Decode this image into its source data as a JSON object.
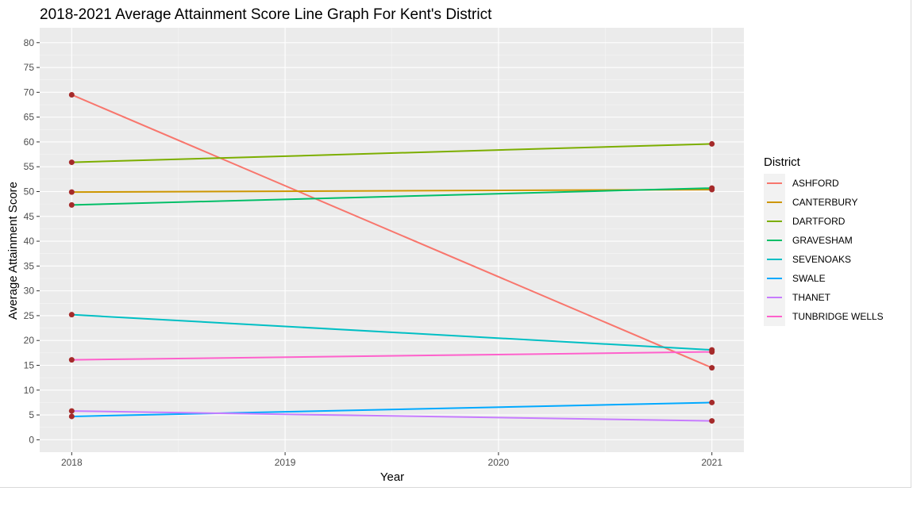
{
  "chart_data": {
    "type": "line",
    "title": "2018-2021 Average Attainment Score Line Graph For Kent's District",
    "xlabel": "Year",
    "ylabel": "Average Attainment Score",
    "legend_title": "District",
    "legend_position": "right",
    "grid": true,
    "x": [
      2018,
      2019,
      2020,
      2021
    ],
    "x_ticks": [
      "2018",
      "2019",
      "2020",
      "2021"
    ],
    "y_ticks": [
      0,
      5,
      10,
      15,
      20,
      25,
      30,
      35,
      40,
      45,
      50,
      55,
      60,
      65,
      70,
      75,
      80
    ],
    "ylim": [
      -2.5,
      83
    ],
    "xlim": [
      2017.85,
      2021.15
    ],
    "point_color": "#a52a2a",
    "series": [
      {
        "name": "ASHFORD",
        "color": "#f8766d",
        "values": [
          [
            2018,
            69.5
          ],
          [
            2021,
            14.5
          ]
        ]
      },
      {
        "name": "CANTERBURY",
        "color": "#cd9600",
        "values": [
          [
            2018,
            49.9
          ],
          [
            2021,
            50.4
          ]
        ]
      },
      {
        "name": "DARTFORD",
        "color": "#7cae00",
        "values": [
          [
            2018,
            55.9
          ],
          [
            2021,
            59.6
          ]
        ]
      },
      {
        "name": "GRAVESHAM",
        "color": "#00be67",
        "values": [
          [
            2018,
            47.3
          ],
          [
            2021,
            50.7
          ]
        ]
      },
      {
        "name": "SEVENOAKS",
        "color": "#00bfc4",
        "values": [
          [
            2018,
            25.2
          ],
          [
            2021,
            18.1
          ]
        ]
      },
      {
        "name": "SWALE",
        "color": "#00a9ff",
        "values": [
          [
            2018,
            4.7
          ],
          [
            2021,
            7.5
          ]
        ]
      },
      {
        "name": "THANET",
        "color": "#c77cff",
        "values": [
          [
            2018,
            5.8
          ],
          [
            2021,
            3.8
          ]
        ]
      },
      {
        "name": "TUNBRIDGE WELLS",
        "color": "#ff61cc",
        "values": [
          [
            2018,
            16.1
          ],
          [
            2021,
            17.7
          ]
        ]
      }
    ]
  }
}
